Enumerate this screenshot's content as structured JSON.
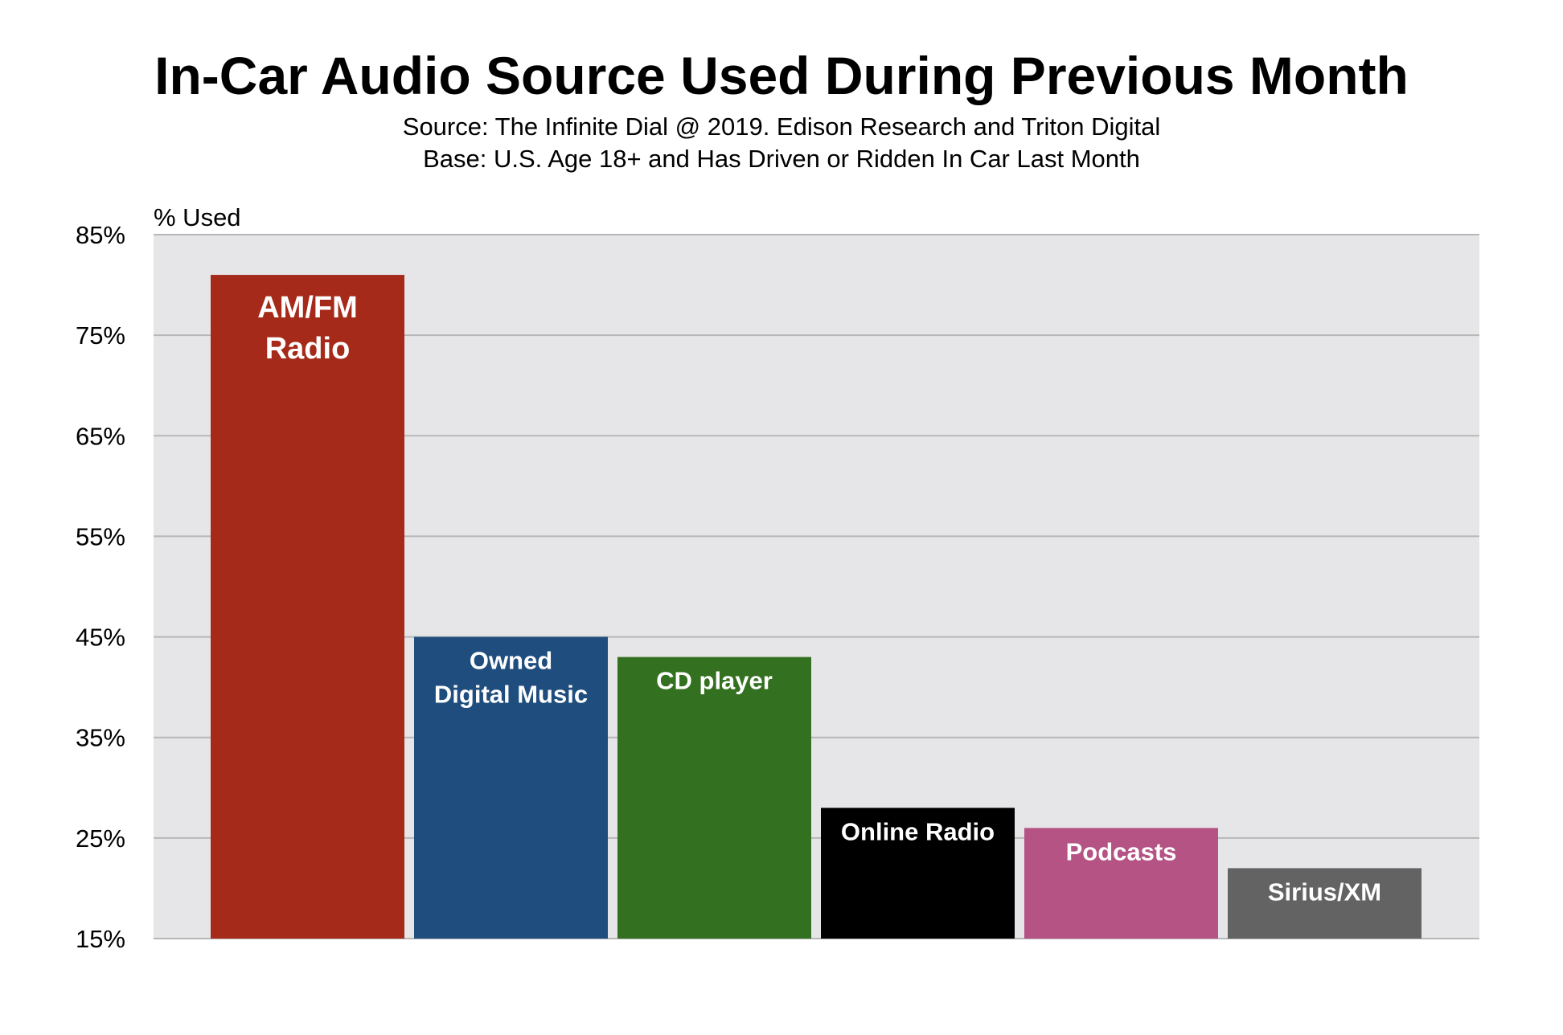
{
  "chart_data": {
    "type": "bar",
    "title": "In-Car Audio Source Used During Previous Month",
    "subtitle": [
      "Source: The Infinite Dial @ 2019. Edison Research and Triton Digital",
      "Base: U.S. Age 18+ and Has Driven or Ridden In Car Last Month"
    ],
    "xlabel": "",
    "ylabel": "% Used",
    "ylim": [
      15,
      85
    ],
    "yticks": [
      15,
      25,
      35,
      45,
      55,
      65,
      75,
      85
    ],
    "ytick_labels": [
      "15%",
      "25%",
      "35%",
      "45%",
      "55%",
      "65%",
      "75%",
      "85%"
    ],
    "grid": true,
    "legend": "none",
    "categories": [
      "AM/FM Radio",
      "Owned Digital Music",
      "CD player",
      "Online Radio",
      "Podcasts",
      "Sirius/XM"
    ],
    "values": [
      81,
      45,
      43,
      28,
      26,
      22
    ],
    "bar_label_lines": [
      [
        "AM/FM",
        "Radio"
      ],
      [
        "Owned",
        "Digital Music"
      ],
      [
        "CD player"
      ],
      [
        "Online Radio"
      ],
      [
        "Podcasts"
      ],
      [
        "Sirius/XM"
      ]
    ],
    "colors": [
      "#a52a1a",
      "#1f4e7e",
      "#33701f",
      "#000000",
      "#b55385",
      "#636363"
    ],
    "plot_background": "#e6e6e9",
    "gridline_color": "#b7b7b7"
  }
}
